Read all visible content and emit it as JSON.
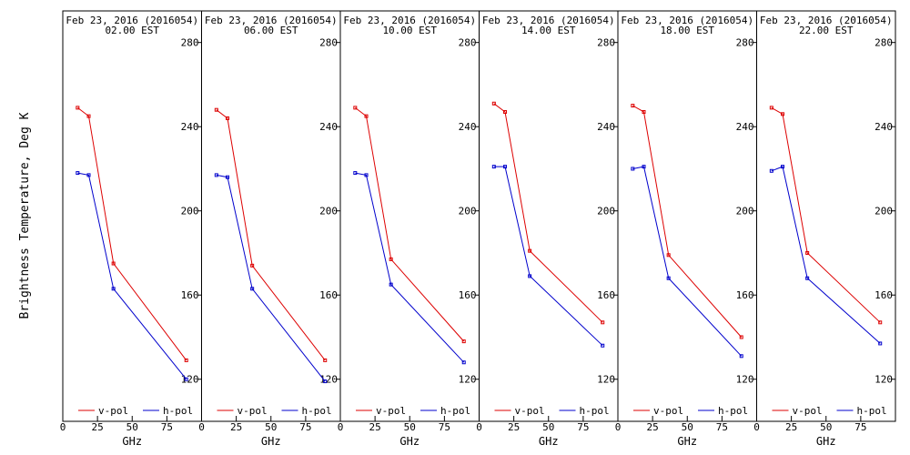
{
  "figure": {
    "ylabel": "Brightness Temperature, Deg K"
  },
  "chart_data": [
    {
      "type": "line",
      "title": "Feb 23, 2016 (2016054)",
      "subtitle": "02.00 EST",
      "xlabel": "GHz",
      "ylabel": "Brightness Temperature, Deg K",
      "xlim": [
        0,
        100
      ],
      "ylim": [
        100,
        295
      ],
      "xticks": [
        0,
        25,
        50,
        75
      ],
      "xtick_labels": [
        "0",
        "25",
        "50",
        "75"
      ],
      "yticks": [
        120,
        160,
        200,
        240,
        280
      ],
      "ytick_labels": [
        "120",
        "160",
        "200",
        "240",
        "280"
      ],
      "x": [
        10.7,
        18.7,
        36.5,
        89.0
      ],
      "legend": "bottom",
      "series": [
        {
          "name": "v-pol",
          "color": "#dd0000",
          "values": [
            249,
            245,
            175,
            129
          ]
        },
        {
          "name": "h-pol",
          "color": "#0000cc",
          "values": [
            218,
            217,
            163,
            120
          ]
        }
      ]
    },
    {
      "type": "line",
      "title": "Feb 23, 2016 (2016054)",
      "subtitle": "06.00 EST",
      "xlabel": "GHz",
      "ylabel": "Brightness Temperature, Deg K",
      "xlim": [
        0,
        100
      ],
      "ylim": [
        100,
        295
      ],
      "xticks": [
        0,
        25,
        50,
        75
      ],
      "xtick_labels": [
        "0",
        "25",
        "50",
        "75"
      ],
      "yticks": [
        120,
        160,
        200,
        240,
        280
      ],
      "ytick_labels": [
        "120",
        "160",
        "200",
        "240",
        "280"
      ],
      "x": [
        10.7,
        18.7,
        36.5,
        89.0
      ],
      "legend": "bottom",
      "series": [
        {
          "name": "v-pol",
          "color": "#dd0000",
          "values": [
            248,
            244,
            174,
            129
          ]
        },
        {
          "name": "h-pol",
          "color": "#0000cc",
          "values": [
            217,
            216,
            163,
            119
          ]
        }
      ]
    },
    {
      "type": "line",
      "title": "Feb 23, 2016 (2016054)",
      "subtitle": "10.00 EST",
      "xlabel": "GHz",
      "ylabel": "Brightness Temperature, Deg K",
      "xlim": [
        0,
        100
      ],
      "ylim": [
        100,
        295
      ],
      "xticks": [
        0,
        25,
        50,
        75
      ],
      "xtick_labels": [
        "0",
        "25",
        "50",
        "75"
      ],
      "yticks": [
        120,
        160,
        200,
        240,
        280
      ],
      "ytick_labels": [
        "120",
        "160",
        "200",
        "240",
        "280"
      ],
      "x": [
        10.7,
        18.7,
        36.5,
        89.0
      ],
      "legend": "bottom",
      "series": [
        {
          "name": "v-pol",
          "color": "#dd0000",
          "values": [
            249,
            245,
            177,
            138
          ]
        },
        {
          "name": "h-pol",
          "color": "#0000cc",
          "values": [
            218,
            217,
            165,
            128
          ]
        }
      ]
    },
    {
      "type": "line",
      "title": "Feb 23, 2016 (2016054)",
      "subtitle": "14.00 EST",
      "xlabel": "GHz",
      "ylabel": "Brightness Temperature, Deg K",
      "xlim": [
        0,
        100
      ],
      "ylim": [
        100,
        295
      ],
      "xticks": [
        0,
        25,
        50,
        75
      ],
      "xtick_labels": [
        "0",
        "25",
        "50",
        "75"
      ],
      "yticks": [
        120,
        160,
        200,
        240,
        280
      ],
      "ytick_labels": [
        "120",
        "160",
        "200",
        "240",
        "280"
      ],
      "x": [
        10.7,
        18.7,
        36.5,
        89.0
      ],
      "legend": "bottom",
      "series": [
        {
          "name": "v-pol",
          "color": "#dd0000",
          "values": [
            251,
            247,
            181,
            147
          ]
        },
        {
          "name": "h-pol",
          "color": "#0000cc",
          "values": [
            221,
            221,
            169,
            136
          ]
        }
      ]
    },
    {
      "type": "line",
      "title": "Feb 23, 2016 (2016054)",
      "subtitle": "18.00 EST",
      "xlabel": "GHz",
      "ylabel": "Brightness Temperature, Deg K",
      "xlim": [
        0,
        100
      ],
      "ylim": [
        100,
        295
      ],
      "xticks": [
        0,
        25,
        50,
        75
      ],
      "xtick_labels": [
        "0",
        "25",
        "50",
        "75"
      ],
      "yticks": [
        120,
        160,
        200,
        240,
        280
      ],
      "ytick_labels": [
        "120",
        "160",
        "200",
        "240",
        "280"
      ],
      "x": [
        10.7,
        18.7,
        36.5,
        89.0
      ],
      "legend": "bottom",
      "series": [
        {
          "name": "v-pol",
          "color": "#dd0000",
          "values": [
            250,
            247,
            179,
            140
          ]
        },
        {
          "name": "h-pol",
          "color": "#0000cc",
          "values": [
            220,
            221,
            168,
            131
          ]
        }
      ]
    },
    {
      "type": "line",
      "title": "Feb 23, 2016 (2016054)",
      "subtitle": "22.00 EST",
      "xlabel": "GHz",
      "ylabel": "Brightness Temperature, Deg K",
      "xlim": [
        0,
        100
      ],
      "ylim": [
        100,
        295
      ],
      "xticks": [
        0,
        25,
        50,
        75
      ],
      "xtick_labels": [
        "0",
        "25",
        "50",
        "75"
      ],
      "yticks": [
        120,
        160,
        200,
        240,
        280
      ],
      "ytick_labels": [
        "120",
        "160",
        "200",
        "240",
        "280"
      ],
      "x": [
        10.7,
        18.7,
        36.5,
        89.0
      ],
      "legend": "bottom",
      "series": [
        {
          "name": "v-pol",
          "color": "#dd0000",
          "values": [
            249,
            246,
            180,
            147
          ]
        },
        {
          "name": "h-pol",
          "color": "#0000cc",
          "values": [
            219,
            221,
            168,
            137
          ]
        }
      ]
    }
  ]
}
